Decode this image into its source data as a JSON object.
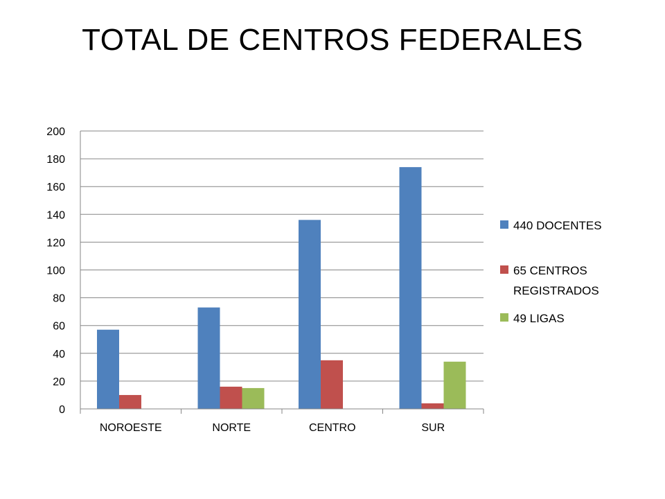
{
  "slide": {
    "title": "TOTAL DE CENTROS FEDERALES"
  },
  "chart_data": {
    "type": "bar",
    "title": "",
    "xlabel": "",
    "ylabel": "",
    "categories": [
      "NOROESTE",
      "NORTE",
      "CENTRO",
      "SUR"
    ],
    "series": [
      {
        "name": "440   DOCENTES",
        "color": "#4F81BD",
        "values": [
          57,
          73,
          136,
          174
        ]
      },
      {
        "name": "65 CENTROS REGISTRADOS",
        "color": "#C0504D",
        "values": [
          10,
          16,
          35,
          4
        ]
      },
      {
        "name": "49 LIGAS",
        "color": "#9BBB59",
        "values": [
          0,
          15,
          0,
          34
        ]
      }
    ],
    "ylim": [
      0,
      200
    ],
    "yticks": [
      0,
      20,
      40,
      60,
      80,
      100,
      120,
      140,
      160,
      180,
      200
    ],
    "grid": true,
    "legend_position": "right"
  }
}
